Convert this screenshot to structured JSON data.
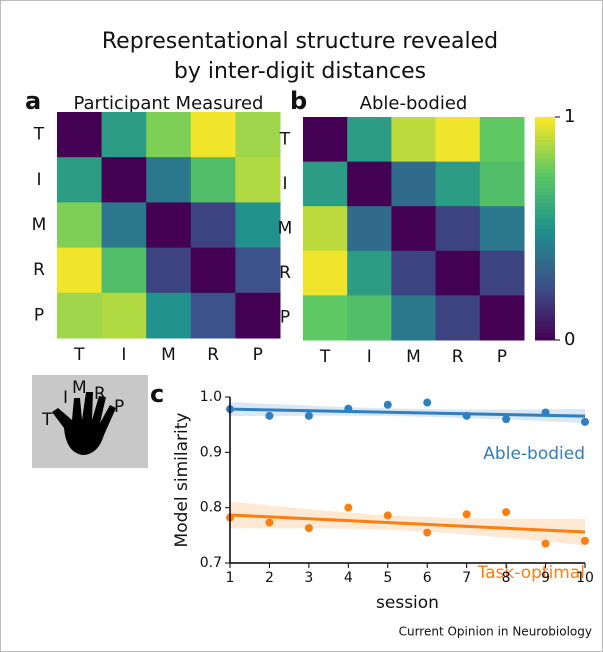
{
  "title": [
    "Representational structure revealed",
    "by inter-digit distances"
  ],
  "chart_data": [
    {
      "type": "heatmap",
      "panel": "a",
      "title": "Participant Measured",
      "rows": [
        "T",
        "I",
        "M",
        "R",
        "P"
      ],
      "columns": [
        "T",
        "I",
        "M",
        "R",
        "P"
      ],
      "values": [
        [
          0,
          0.55,
          0.8,
          0.98,
          0.85
        ],
        [
          0.55,
          0,
          0.4,
          0.7,
          0.88
        ],
        [
          0.8,
          0.4,
          0,
          0.2,
          0.5
        ],
        [
          0.98,
          0.7,
          0.2,
          0,
          0.25
        ],
        [
          0.85,
          0.88,
          0.5,
          0.25,
          0
        ]
      ],
      "colormap": "viridis",
      "zlim": [
        0,
        1
      ]
    },
    {
      "type": "heatmap",
      "panel": "b",
      "title": "Able-bodied",
      "rows": [
        "T",
        "I",
        "M",
        "R",
        "P"
      ],
      "columns": [
        "T",
        "I",
        "M",
        "R",
        "P"
      ],
      "values": [
        [
          0,
          0.55,
          0.9,
          0.98,
          0.75
        ],
        [
          0.55,
          0,
          0.35,
          0.55,
          0.7
        ],
        [
          0.9,
          0.35,
          0,
          0.2,
          0.4
        ],
        [
          0.98,
          0.55,
          0.2,
          0,
          0.2
        ],
        [
          0.75,
          0.7,
          0.4,
          0.2,
          0
        ]
      ],
      "colormap": "viridis",
      "zlim": [
        0,
        1
      ],
      "colorbar": true,
      "zticks": [
        0,
        1
      ]
    },
    {
      "type": "scatter",
      "panel": "c",
      "x_label": "session",
      "y_label": "Model similarity",
      "x": [
        1,
        2,
        3,
        4,
        5,
        6,
        7,
        8,
        9,
        10
      ],
      "series": [
        {
          "name": "Able-bodied",
          "color": "#2f7fc1",
          "values": [
            0.978,
            0.966,
            0.966,
            0.979,
            0.986,
            0.99,
            0.966,
            0.96,
            0.972,
            0.955
          ]
        },
        {
          "name": "Task-optimal",
          "color": "#ff7f0e",
          "values": [
            0.782,
            0.773,
            0.763,
            0.8,
            0.786,
            0.755,
            0.788,
            0.792,
            0.735,
            0.74
          ]
        }
      ],
      "xlim": [
        1,
        10
      ],
      "xticks": [
        1,
        2,
        3,
        4,
        5,
        6,
        7,
        8,
        9,
        10
      ],
      "ylim": [
        0.7,
        1
      ],
      "yticks": [
        0.7,
        0.8,
        0.9,
        {
          "value": 1,
          "label": "1.0"
        }
      ],
      "trend": true
    }
  ],
  "hand_labels": [
    "T",
    "I",
    "M",
    "R",
    "P"
  ],
  "credit": "Current Opinion in Neurobiology"
}
